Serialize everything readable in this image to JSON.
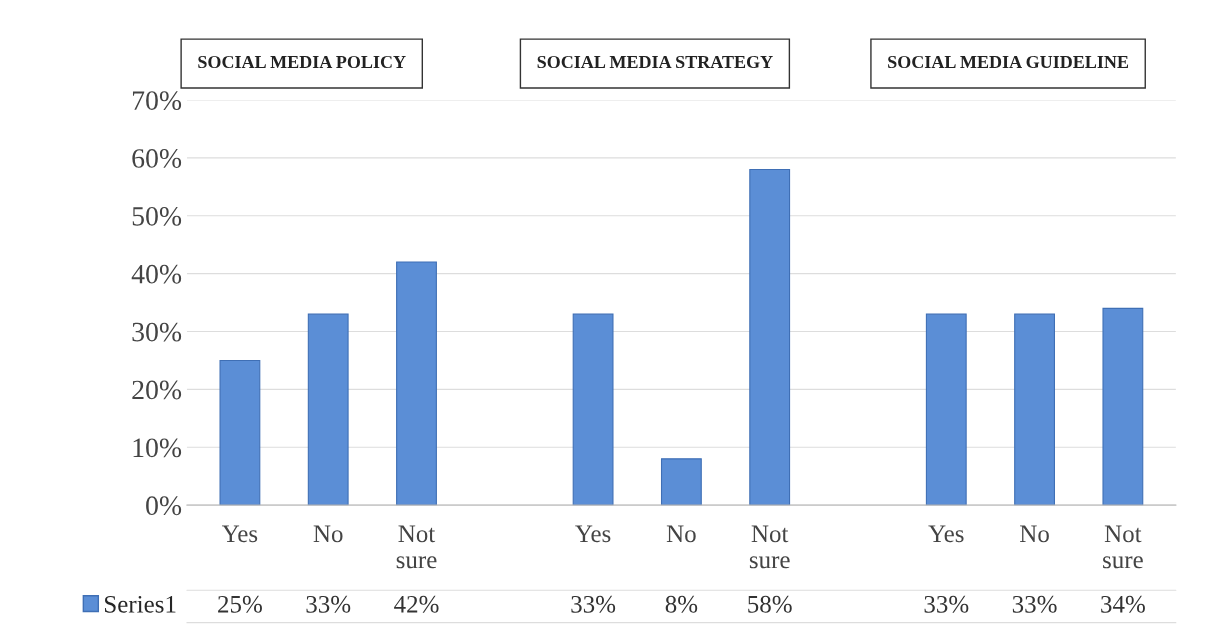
{
  "chart_data": {
    "type": "bar",
    "categories": [
      "Yes",
      "No",
      "Not\nsure",
      null,
      "Yes",
      "No",
      "Not\nsure",
      null,
      "Yes",
      "No",
      "Not\nsure"
    ],
    "series": [
      {
        "name": "Series1",
        "color": "#5b8ed6",
        "values": [
          25,
          33,
          42,
          null,
          33,
          8,
          58,
          null,
          33,
          33,
          34
        ],
        "value_labels": [
          "25%",
          "33%",
          "42%",
          null,
          "33%",
          "8%",
          "58%",
          null,
          "33%",
          "33%",
          "34%"
        ]
      }
    ],
    "ylim": [
      0,
      70
    ],
    "yticks": [
      {
        "value": 0,
        "label": "0%"
      },
      {
        "value": 10,
        "label": "10%"
      },
      {
        "value": 20,
        "label": "20%"
      },
      {
        "value": 30,
        "label": "30%"
      },
      {
        "value": 40,
        "label": "40%"
      },
      {
        "value": 50,
        "label": "50%"
      },
      {
        "value": 60,
        "label": "60%"
      },
      {
        "value": 70,
        "label": "70%"
      }
    ],
    "grid": "y",
    "legend": "bottom",
    "annotations": [
      "SOCIAL MEDIA POLICY",
      "SOCIAL MEDIA STRATEGY",
      "SOCIAL MEDIA GUIDELINE"
    ]
  }
}
